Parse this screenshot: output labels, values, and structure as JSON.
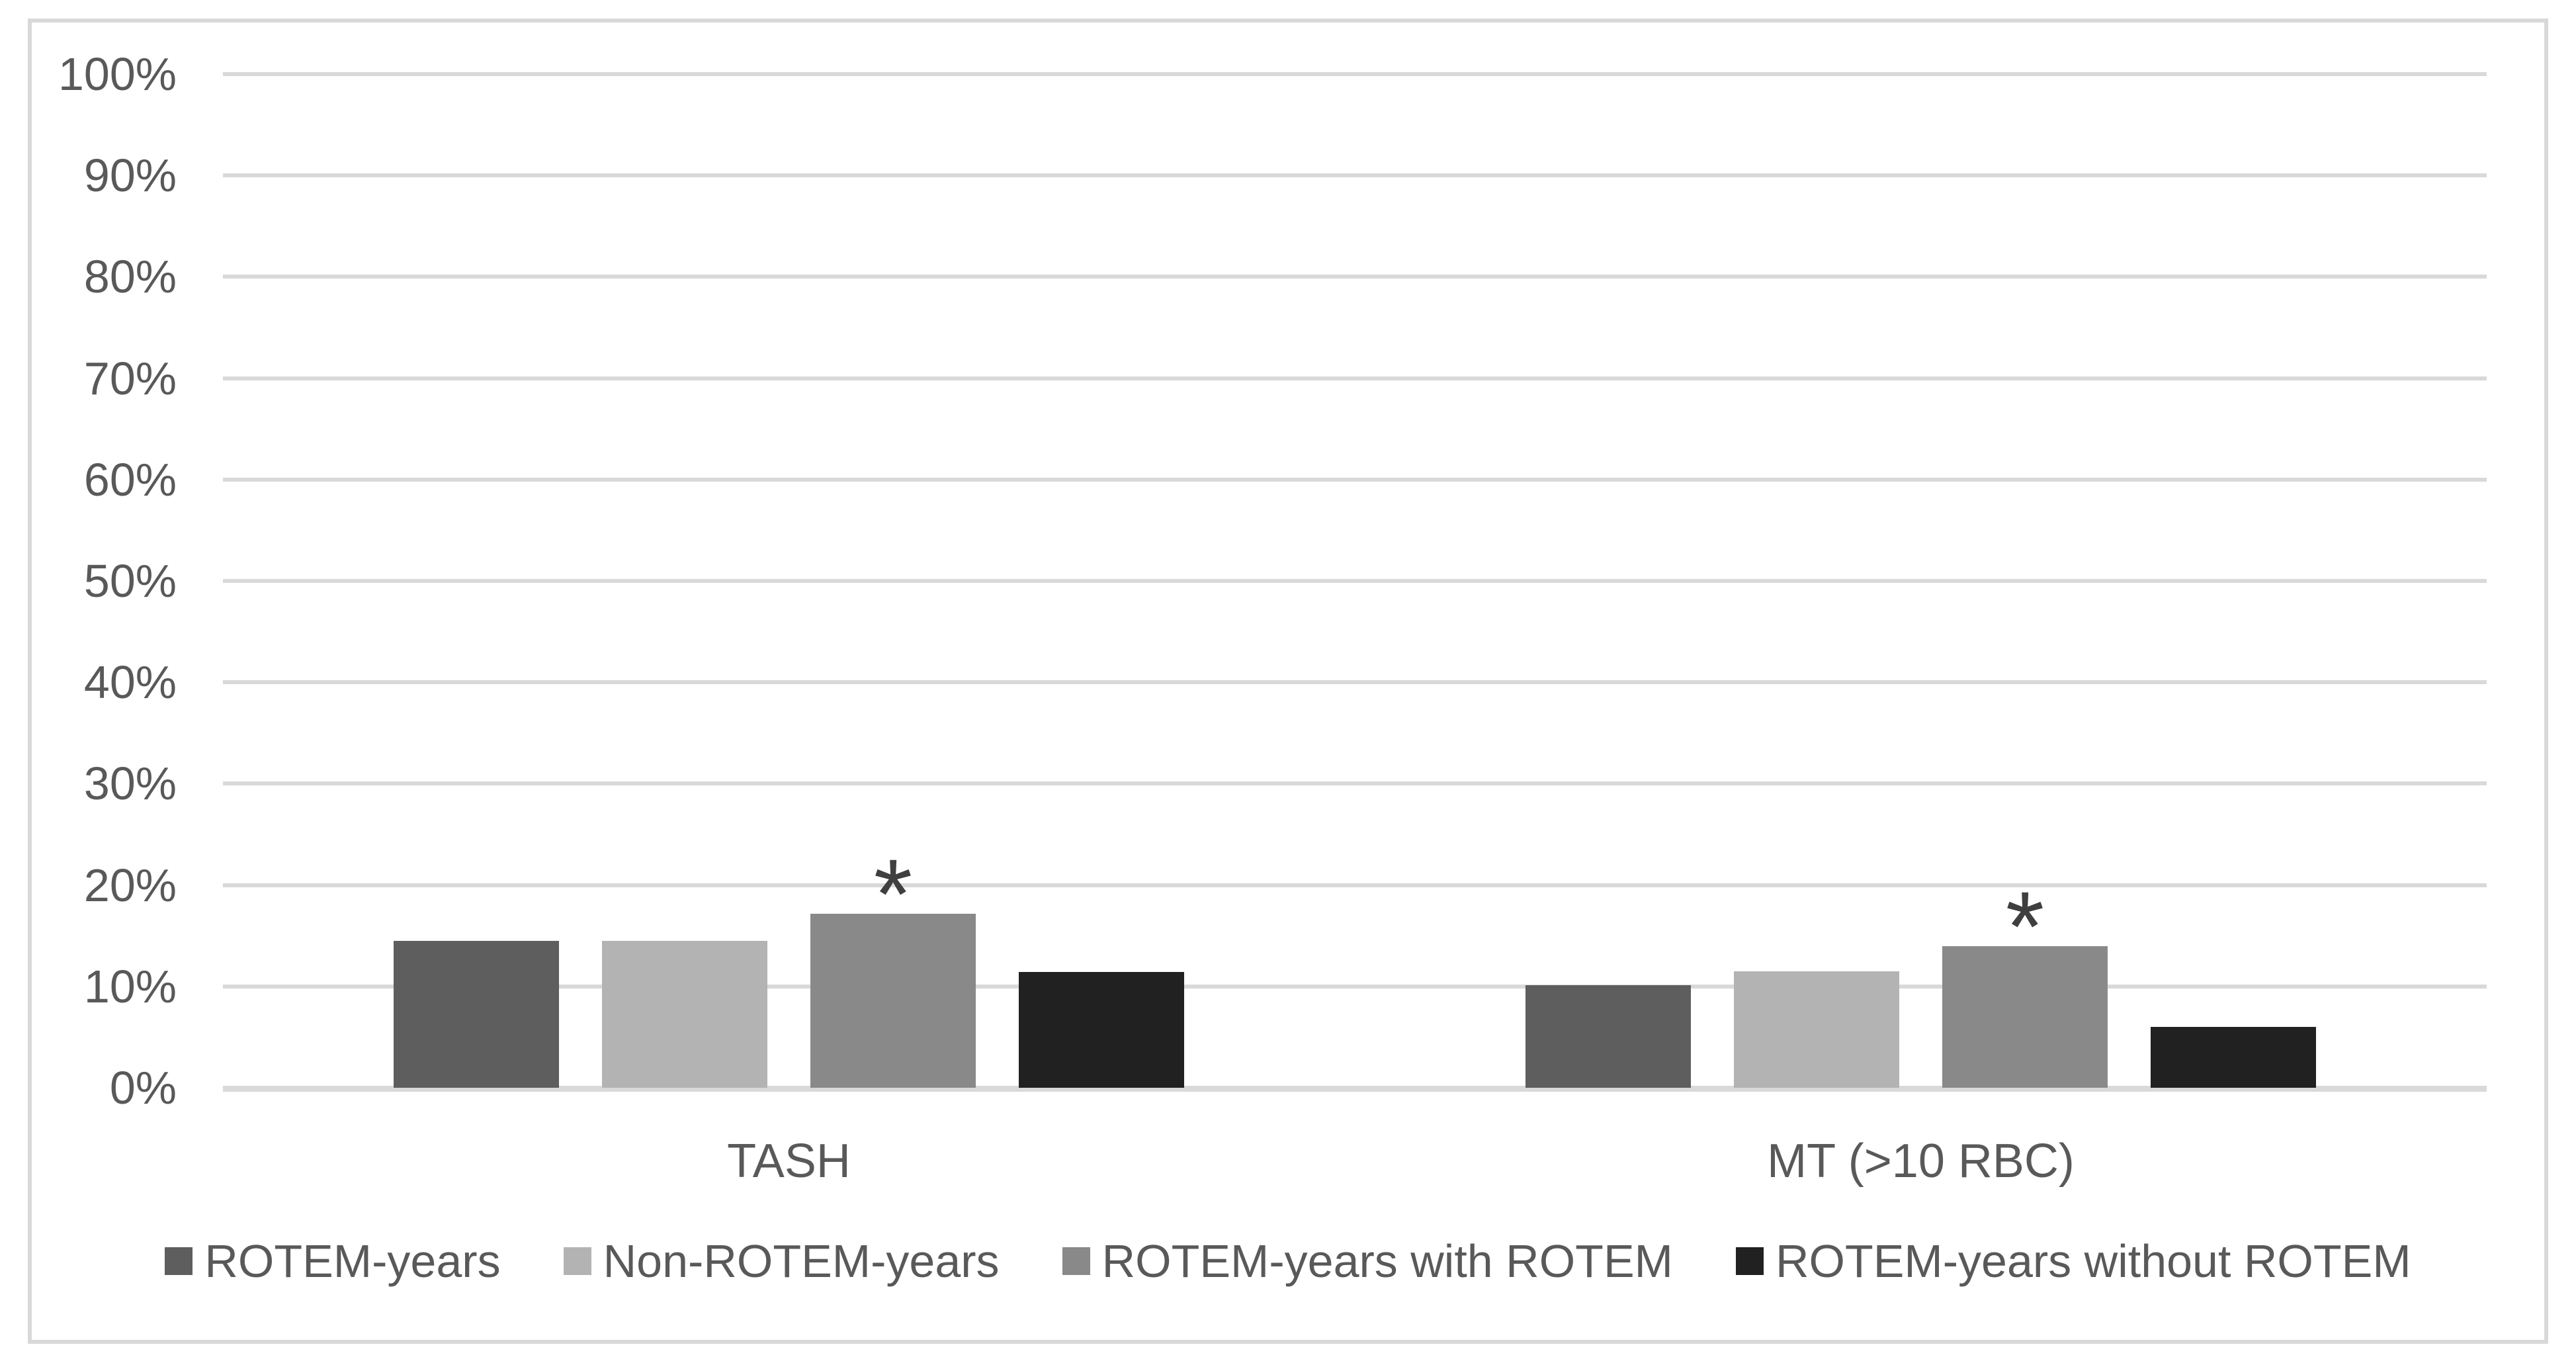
{
  "figure": {
    "background": "#ffffff",
    "border_color": "#d9d9d9"
  },
  "chart_data": {
    "type": "bar",
    "title": "",
    "xlabel": "",
    "ylabel": "",
    "categories": [
      "TASH",
      "MT (>10 RBC)"
    ],
    "series": [
      {
        "name": "ROTEM-years",
        "color": "#5e5e5e",
        "values": [
          14.5,
          10.1
        ]
      },
      {
        "name": "Non-ROTEM-years",
        "color": "#b3b3b3",
        "values": [
          14.5,
          11.5
        ]
      },
      {
        "name": "ROTEM-years with ROTEM",
        "color": "#898989",
        "values": [
          17.2,
          14.0
        ]
      },
      {
        "name": "ROTEM-years without ROTEM",
        "color": "#212121",
        "values": [
          11.4,
          6.0
        ]
      }
    ],
    "significance_markers": [
      {
        "category": "TASH",
        "series": "ROTEM-years with ROTEM",
        "marker": "*"
      },
      {
        "category": "MT (>10 RBC)",
        "series": "ROTEM-years with ROTEM",
        "marker": "*"
      }
    ],
    "ylim": [
      0,
      100
    ],
    "yticks": [
      "0%",
      "10%",
      "20%",
      "30%",
      "40%",
      "50%",
      "60%",
      "70%",
      "80%",
      "90%",
      "100%"
    ],
    "grid": true,
    "legend_position": "bottom",
    "colors": {
      "gridline": "#d9d9d9",
      "axis": "#d9d9d9",
      "tick_text": "#595959",
      "category_text": "#595959",
      "legend_text": "#595959",
      "marker_text": "#3f3f3f"
    }
  }
}
